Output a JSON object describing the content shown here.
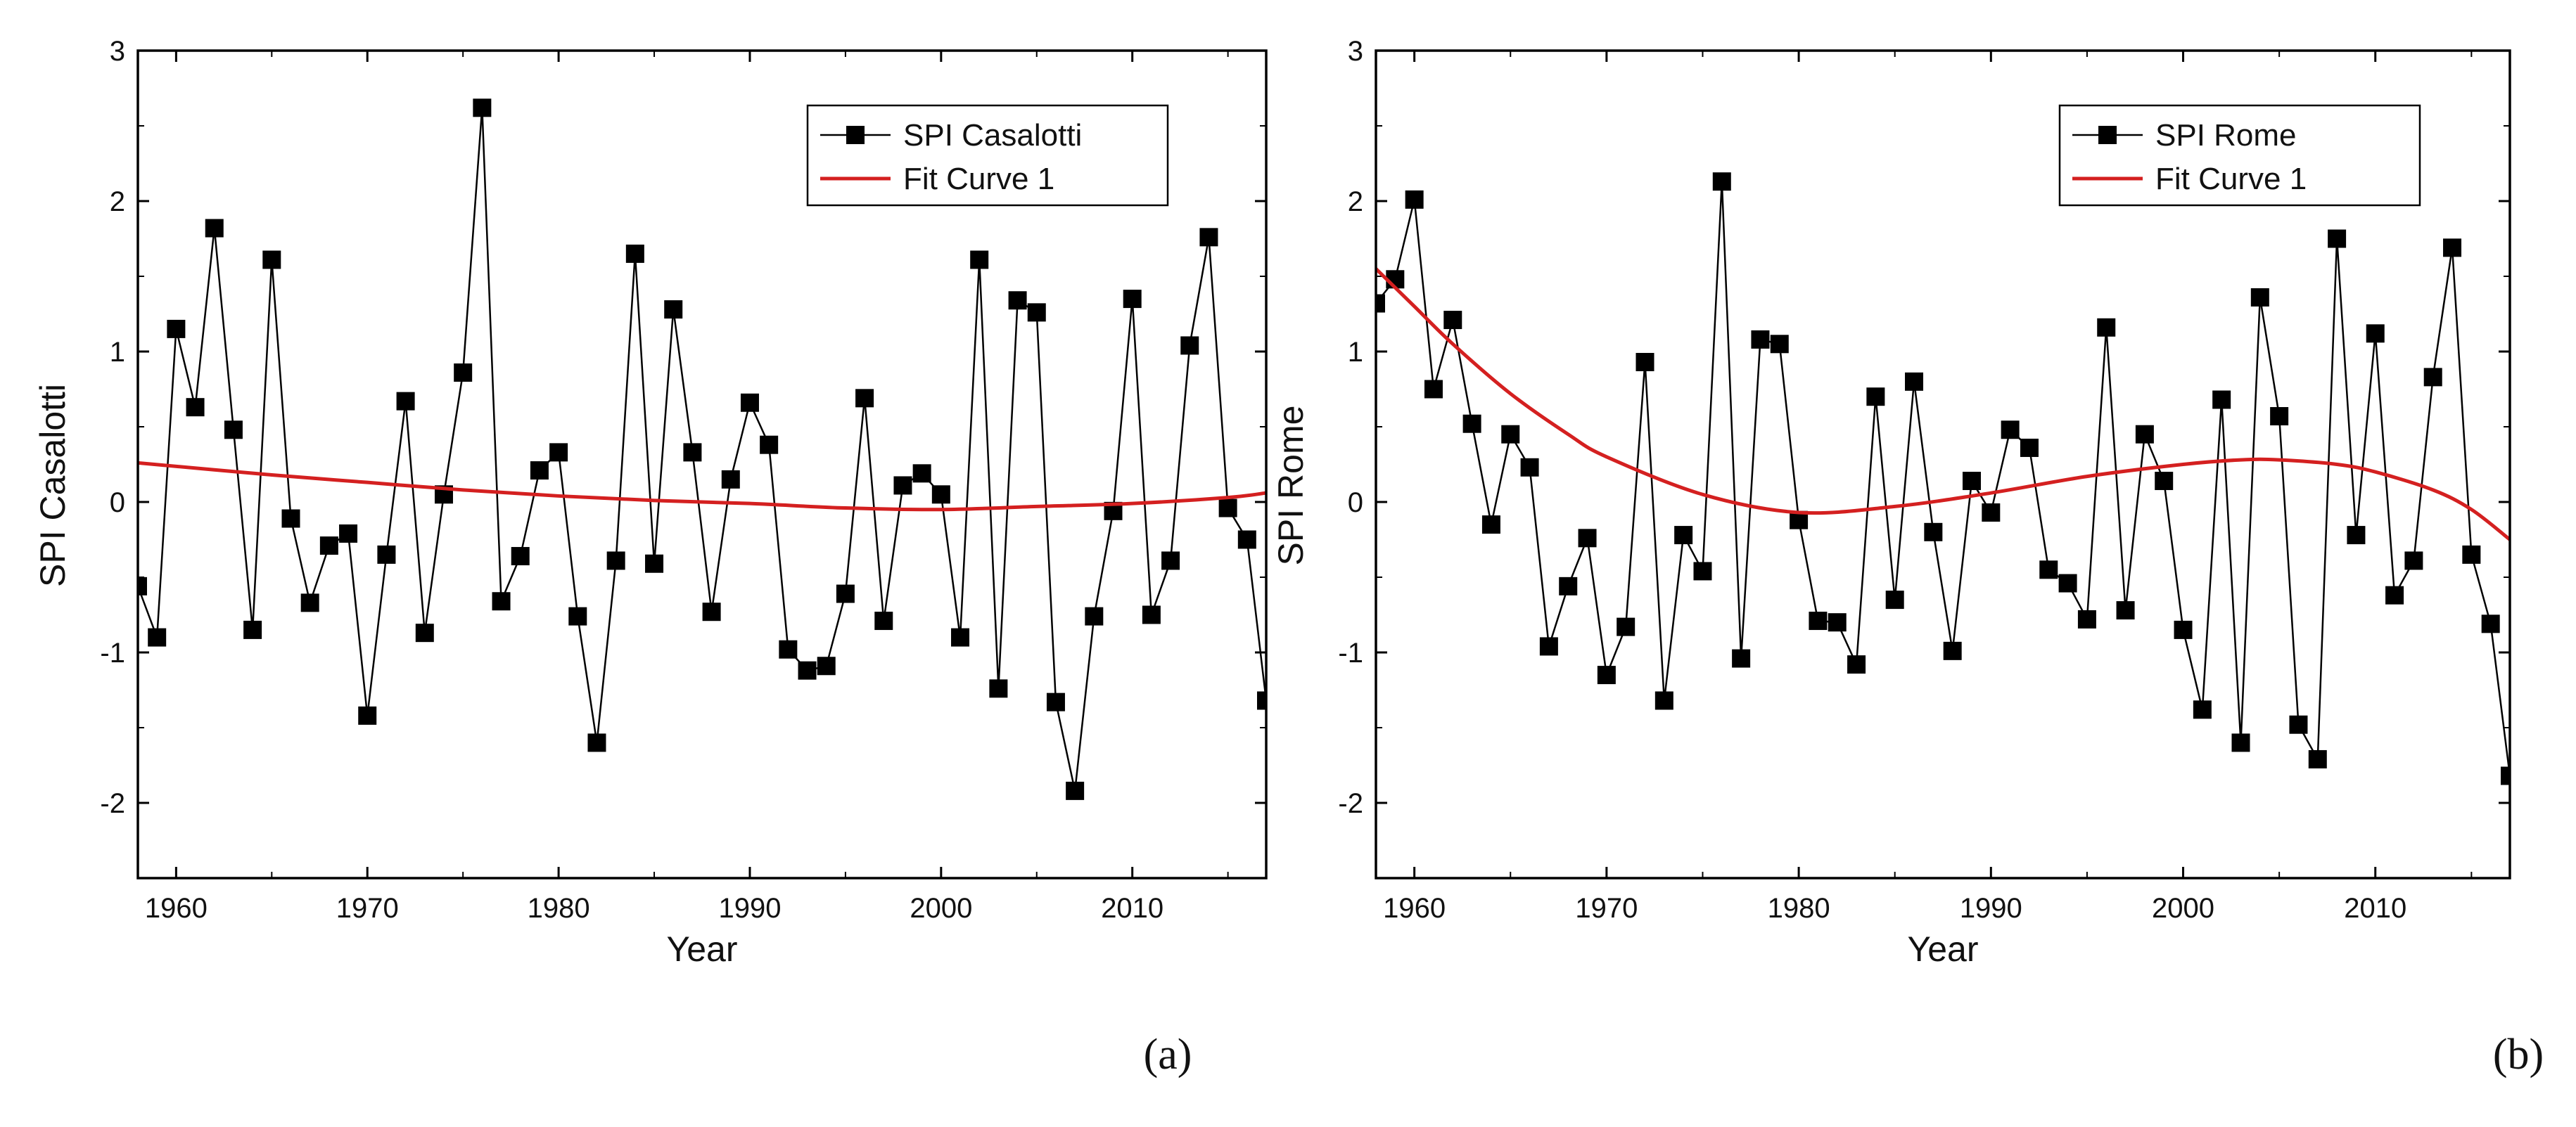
{
  "chart_data": [
    {
      "type": "line",
      "panel_label": "(a)",
      "xlabel": "Year",
      "ylabel": "SPI Casalotti",
      "xlim": [
        1958,
        2017
      ],
      "ylim": [
        -2.5,
        3
      ],
      "xticks": [
        1960,
        1970,
        1980,
        1990,
        2000,
        2010
      ],
      "yticks": [
        -2,
        -1,
        0,
        1,
        2,
        3
      ],
      "legend_position": "top-right",
      "series": [
        {
          "name": "SPI Casalotti",
          "style": "line-with-square-markers",
          "color": "#000000",
          "x": [
            1958,
            1959,
            1960,
            1961,
            1962,
            1963,
            1964,
            1965,
            1966,
            1967,
            1968,
            1969,
            1970,
            1971,
            1972,
            1973,
            1974,
            1975,
            1976,
            1977,
            1978,
            1979,
            1980,
            1981,
            1982,
            1983,
            1984,
            1985,
            1986,
            1987,
            1988,
            1989,
            1990,
            1991,
            1992,
            1993,
            1994,
            1995,
            1996,
            1997,
            1998,
            1999,
            2000,
            2001,
            2002,
            2003,
            2004,
            2005,
            2006,
            2007,
            2008,
            2009,
            2010,
            2011,
            2012,
            2013,
            2014,
            2015,
            2016,
            2017
          ],
          "values": [
            -0.56,
            -0.9,
            1.15,
            0.63,
            1.82,
            0.48,
            -0.85,
            1.61,
            -0.11,
            -0.67,
            -0.29,
            -0.21,
            -1.42,
            -0.35,
            0.67,
            -0.87,
            0.05,
            0.86,
            2.62,
            -0.66,
            -0.36,
            0.21,
            0.33,
            -0.76,
            -1.6,
            -0.39,
            1.65,
            -0.41,
            1.28,
            0.33,
            -0.73,
            0.15,
            0.66,
            0.38,
            -0.98,
            -1.12,
            -1.09,
            -0.61,
            0.69,
            -0.79,
            0.11,
            0.19,
            0.05,
            -0.9,
            1.61,
            -1.24,
            1.34,
            1.26,
            -1.33,
            -1.92,
            -0.76,
            -0.06,
            1.35,
            -0.75,
            -0.39,
            1.04,
            1.76,
            -0.04,
            -0.25,
            -1.32
          ]
        },
        {
          "name": "Fit Curve 1",
          "style": "line",
          "color": "#d42020",
          "x": [
            1958,
            1965,
            1970,
            1975,
            1980,
            1985,
            1990,
            1995,
            2000,
            2005,
            2010,
            2015,
            2017
          ],
          "values": [
            0.26,
            0.18,
            0.13,
            0.08,
            0.04,
            0.01,
            -0.01,
            -0.04,
            -0.05,
            -0.03,
            -0.01,
            0.03,
            0.06
          ]
        }
      ]
    },
    {
      "type": "line",
      "panel_label": "(b)",
      "xlabel": "Year",
      "ylabel": "SPI Rome",
      "xlim": [
        1958,
        2017
      ],
      "ylim": [
        -2.5,
        3
      ],
      "xticks": [
        1960,
        1970,
        1980,
        1990,
        2000,
        2010
      ],
      "yticks": [
        -2,
        -1,
        0,
        1,
        2,
        3
      ],
      "legend_position": "top-right",
      "series": [
        {
          "name": "SPI Rome",
          "style": "line-with-square-markers",
          "color": "#000000",
          "x": [
            1958,
            1959,
            1960,
            1961,
            1962,
            1963,
            1964,
            1965,
            1966,
            1967,
            1968,
            1969,
            1970,
            1971,
            1972,
            1973,
            1974,
            1975,
            1976,
            1977,
            1978,
            1979,
            1980,
            1981,
            1982,
            1983,
            1984,
            1985,
            1986,
            1987,
            1988,
            1989,
            1990,
            1991,
            1992,
            1993,
            1994,
            1995,
            1996,
            1997,
            1998,
            1999,
            2000,
            2001,
            2002,
            2003,
            2004,
            2005,
            2006,
            2007,
            2008,
            2009,
            2010,
            2011,
            2012,
            2013,
            2014,
            2015,
            2016,
            2017
          ],
          "values": [
            1.32,
            1.48,
            2.01,
            0.75,
            1.21,
            0.52,
            -0.15,
            0.45,
            0.23,
            -0.96,
            -0.56,
            -0.24,
            -1.15,
            -0.83,
            0.93,
            -1.32,
            -0.22,
            -0.46,
            2.13,
            -1.04,
            1.08,
            1.05,
            -0.12,
            -0.79,
            -0.8,
            -1.08,
            0.7,
            -0.65,
            0.8,
            -0.2,
            -0.99,
            0.14,
            -0.07,
            0.48,
            0.36,
            -0.45,
            -0.54,
            -0.78,
            1.16,
            -0.72,
            0.45,
            0.14,
            -0.85,
            -1.38,
            0.68,
            -1.6,
            1.36,
            0.57,
            -1.48,
            -1.71,
            1.75,
            -0.22,
            1.12,
            -0.62,
            -0.39,
            0.83,
            1.69,
            -0.35,
            -0.81,
            -1.82
          ]
        },
        {
          "name": "Fit Curve 1",
          "style": "line",
          "color": "#d42020",
          "x": [
            1958,
            1960,
            1962,
            1965,
            1968,
            1970,
            1975,
            1980,
            1985,
            1990,
            1995,
            2000,
            2003,
            2005,
            2008,
            2010,
            2013,
            2015,
            2017
          ],
          "values": [
            1.55,
            1.3,
            1.05,
            0.72,
            0.45,
            0.3,
            0.05,
            -0.07,
            -0.03,
            0.06,
            0.17,
            0.25,
            0.28,
            0.28,
            0.25,
            0.2,
            0.08,
            -0.05,
            -0.25
          ]
        }
      ]
    }
  ]
}
